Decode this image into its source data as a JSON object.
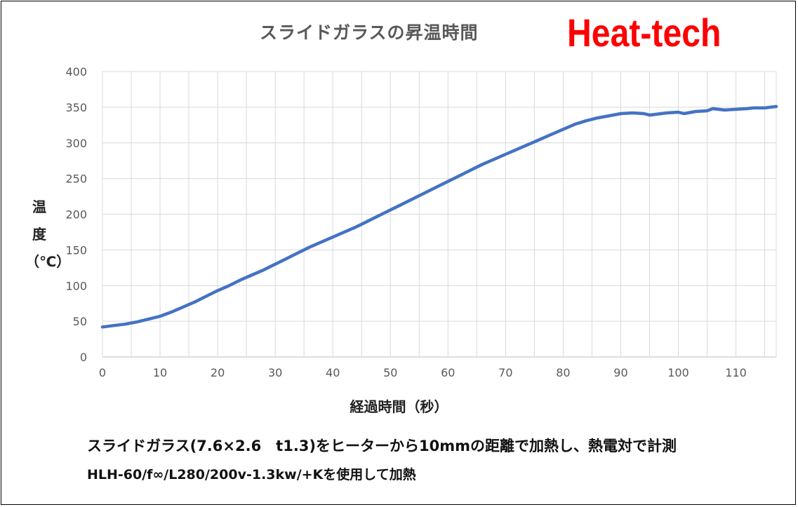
{
  "chart_data": {
    "type": "line",
    "title": "スライドガラスの昇温時間",
    "xlabel": "経過時間（秒）",
    "ylabel": [
      "温",
      "度",
      "（℃）"
    ],
    "xlim": [
      0,
      117
    ],
    "ylim": [
      0,
      400
    ],
    "xticks": [
      0,
      10,
      20,
      30,
      40,
      50,
      60,
      70,
      80,
      90,
      100,
      110
    ],
    "yticks": [
      0,
      50,
      100,
      150,
      200,
      250,
      300,
      350,
      400
    ],
    "grid": true,
    "legend": "none",
    "series": [
      {
        "color": "#4472c4",
        "x": [
          0,
          2,
          4,
          6,
          8,
          10,
          12,
          14,
          16,
          18,
          20,
          22,
          24,
          26,
          28,
          30,
          32,
          34,
          36,
          38,
          40,
          42,
          44,
          46,
          48,
          50,
          52,
          54,
          56,
          58,
          60,
          62,
          64,
          66,
          68,
          70,
          72,
          74,
          76,
          78,
          80,
          82,
          84,
          86,
          88,
          90,
          92,
          94,
          95,
          98,
          100,
          101,
          103,
          105,
          106,
          108,
          110,
          112,
          113,
          115,
          117
        ],
        "y": [
          42,
          44,
          46,
          49,
          53,
          57,
          63,
          70,
          77,
          85,
          93,
          100,
          108,
          115,
          122,
          130,
          138,
          146,
          154,
          161,
          168,
          175,
          182,
          190,
          198,
          206,
          214,
          222,
          230,
          238,
          246,
          254,
          262,
          270,
          277,
          284,
          291,
          298,
          305,
          312,
          319,
          326,
          331,
          335,
          338,
          341,
          342,
          341,
          339,
          342,
          343,
          341,
          344,
          345,
          348,
          346,
          347,
          348,
          349,
          349,
          351
        ]
      }
    ]
  },
  "brand": "Heat-tech",
  "caption": {
    "line1": "スライドガラス(7.6×2.6　t1.3)をヒーターから10mmの距離で加熱し、熱電対で計測",
    "line2": "HLH-60/f∞/L280/200v-1.3kw/+Kを使用して加熱"
  }
}
